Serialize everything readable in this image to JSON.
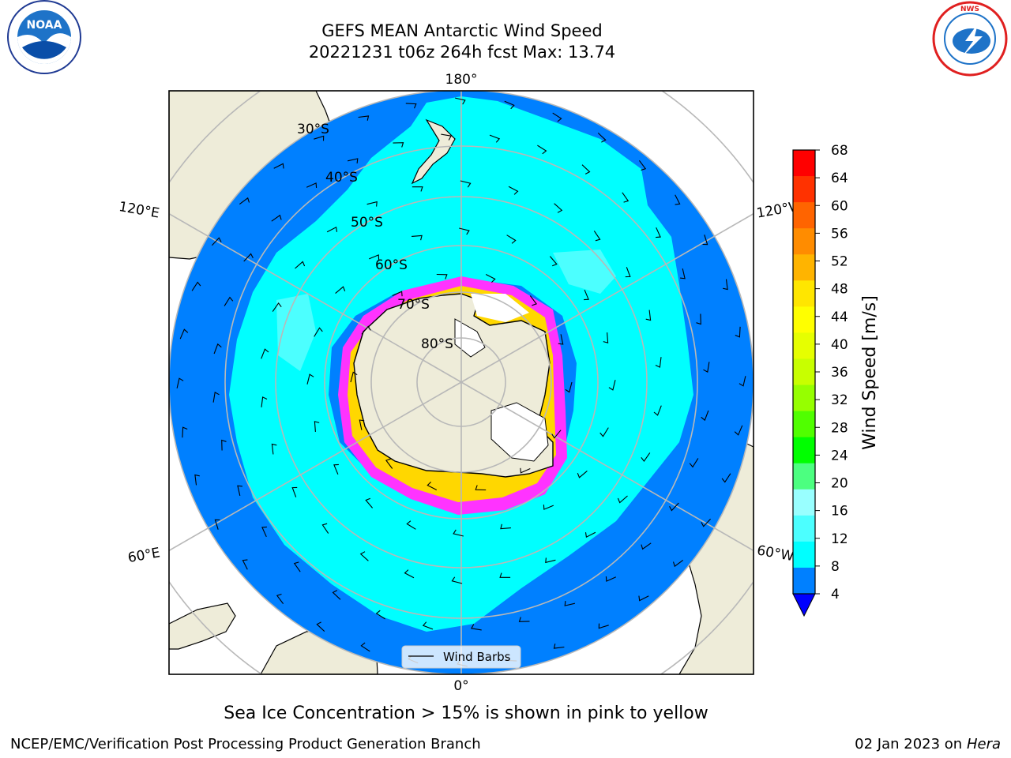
{
  "title": {
    "line1": "GEFS MEAN Antarctic Wind Speed",
    "line2": "20221231 t06z 264h fcst   Max: 13.74"
  },
  "logos": {
    "left": {
      "name": "NOAA",
      "ring_text": "NATIONAL OCEANIC AND ATMOSPHERIC ADMINISTRATION · U.S. DEPARTMENT OF COMMERCE"
    },
    "right": {
      "name": "NATIONAL WEATHER SERVICE"
    }
  },
  "map": {
    "projection": "south-polar-stereographic",
    "meridian_labels": {
      "top": "180°",
      "bottom": "0°",
      "left_upper": "120°E",
      "left_lower": "60°E",
      "right_upper": "120°W",
      "right_lower": "60°W"
    },
    "latitude_labels": [
      "30°S",
      "40°S",
      "50°S",
      "60°S",
      "70°S",
      "80°S"
    ],
    "legend": {
      "label": "Wind Barbs"
    },
    "colors": {
      "land": "#eeecd9",
      "ocean_high": "#00ffff",
      "ocean_low": "#0080ff",
      "sea_ice": "#ff33ff",
      "grid": "#b8b8b8"
    }
  },
  "colorbar": {
    "label": "Wind Speed [m/s]",
    "ticks": [
      "68",
      "64",
      "60",
      "56",
      "52",
      "48",
      "44",
      "40",
      "36",
      "32",
      "28",
      "24",
      "20",
      "16",
      "12",
      "8",
      "4"
    ],
    "colors": [
      "#ff0000",
      "#ff3200",
      "#ff6400",
      "#ff8c00",
      "#ffb400",
      "#ffe600",
      "#ffff00",
      "#e6ff00",
      "#c8ff00",
      "#96ff00",
      "#50ff00",
      "#00ff00",
      "#4cff80",
      "#99ffff",
      "#4cffff",
      "#00ffff",
      "#0080ff"
    ],
    "extend_color": "#0000ff"
  },
  "note": "Sea Ice Concentration > 15% is shown in pink to yellow",
  "footer": {
    "left": "NCEP/EMC/Verification Post Processing Product Generation Branch",
    "date": "02 Jan 2023 on ",
    "host": "Hera"
  }
}
